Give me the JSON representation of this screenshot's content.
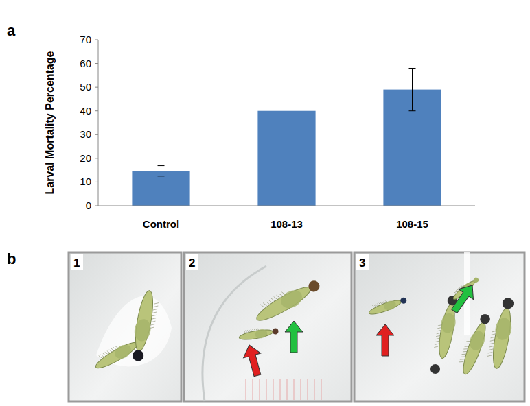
{
  "chart_data": {
    "type": "bar",
    "y_label": "Larval Mortality Percentage",
    "categories": [
      "Control",
      "108-13",
      "108-15"
    ],
    "values": [
      14.7,
      40,
      49
    ],
    "errors": [
      2.2,
      null,
      9
    ],
    "color": "#4f81bd",
    "ylim": [
      0,
      70
    ],
    "yticks": [
      0,
      10,
      20,
      30,
      40,
      50,
      60,
      70
    ],
    "grid": false
  },
  "figure": {
    "panels": [
      "a",
      "b"
    ],
    "photo_labels": [
      "1",
      "2",
      "3"
    ]
  }
}
